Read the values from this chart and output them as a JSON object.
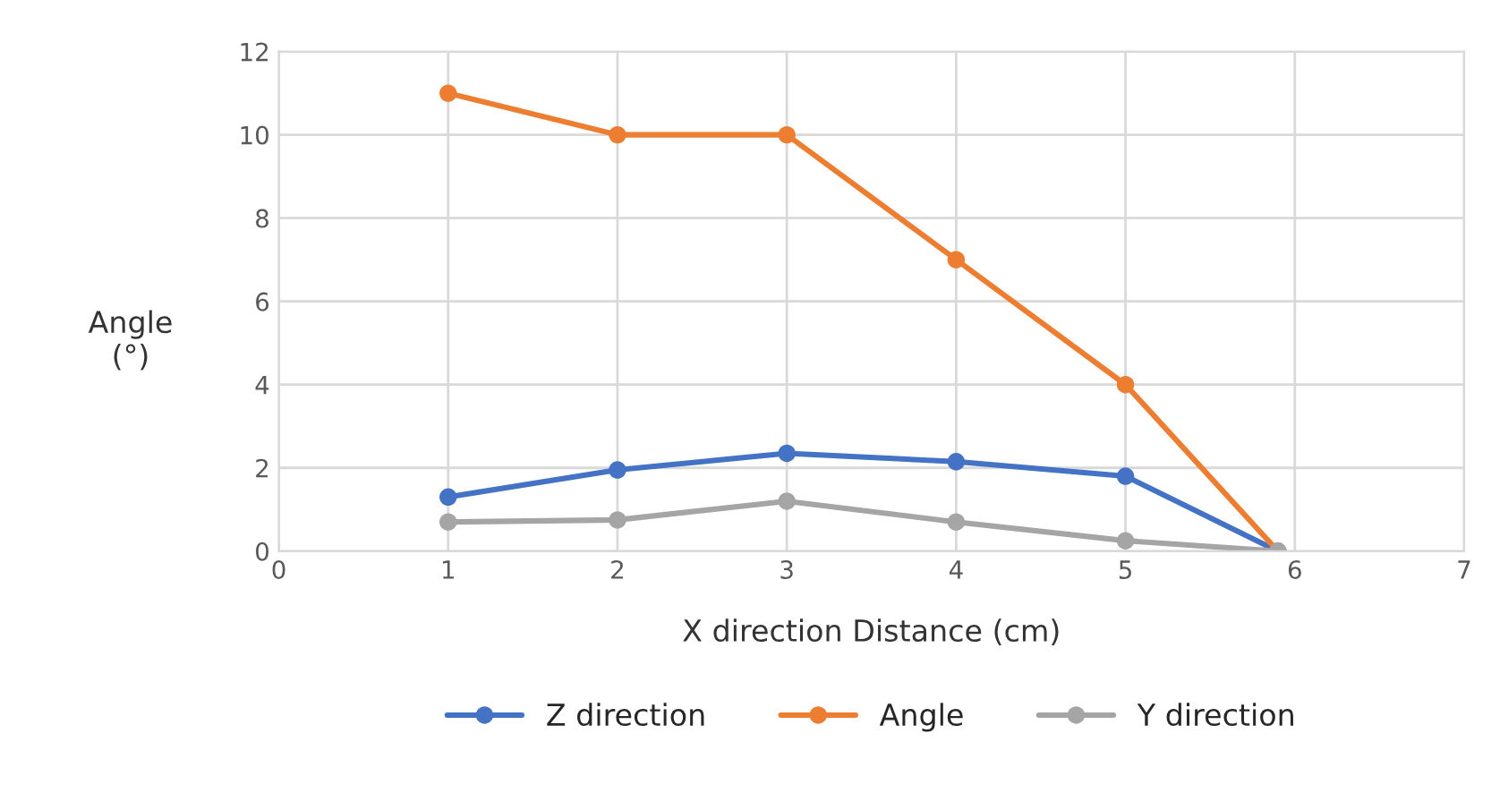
{
  "chart_data": {
    "type": "line",
    "xlabel": "X direction Distance (cm)",
    "ylabel": "Angle\n(°)",
    "x": [
      1,
      2,
      3,
      4,
      5,
      5.9
    ],
    "series": [
      {
        "name": "Z direction",
        "color": "#4472c4",
        "values": [
          1.3,
          1.95,
          2.35,
          2.15,
          1.8,
          0
        ]
      },
      {
        "name": "Angle",
        "color": "#ed7d31",
        "values": [
          11,
          10,
          10,
          7,
          4,
          0
        ]
      },
      {
        "name": "Y direction",
        "color": "#a5a5a5",
        "values": [
          0.7,
          0.75,
          1.2,
          0.7,
          0.25,
          0
        ]
      }
    ],
    "xlim": [
      0,
      7
    ],
    "xticks": [
      0,
      1,
      2,
      3,
      4,
      5,
      6,
      7
    ],
    "ylim": [
      0,
      12
    ],
    "yticks": [
      0,
      2,
      4,
      6,
      8,
      10,
      12
    ],
    "grid": true,
    "legend": "bottom",
    "marker": "circle",
    "line_style": "solid"
  }
}
